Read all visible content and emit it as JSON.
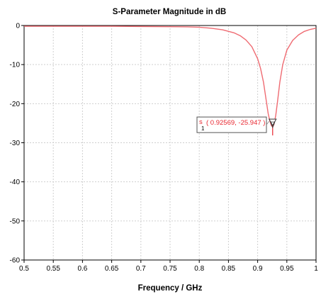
{
  "chart_data": {
    "type": "line",
    "title": "S-Parameter Magnitude in dB",
    "xlabel": "Frequency / GHz",
    "ylabel": "",
    "xlim": [
      0.5,
      1.0
    ],
    "ylim": [
      -60,
      0
    ],
    "x_ticks": [
      "0.5",
      "0.55",
      "0.6",
      "0.65",
      "0.7",
      "0.75",
      "0.8",
      "0.85",
      "0.9",
      "0.95",
      "1"
    ],
    "y_ticks": [
      "0",
      "-10",
      "-20",
      "-30",
      "-40",
      "-50",
      "-60"
    ],
    "grid": true,
    "colors": {
      "series": "#ef6b72",
      "marker": "#e8262f",
      "grid": "#cfcfcf",
      "axis": "#000000"
    },
    "series": [
      {
        "x": [
          0.5,
          0.55,
          0.6,
          0.65,
          0.7,
          0.75,
          0.78,
          0.8,
          0.82,
          0.84,
          0.86,
          0.87,
          0.88,
          0.89,
          0.9,
          0.905,
          0.91,
          0.915,
          0.918,
          0.921,
          0.9235,
          0.92569,
          0.928,
          0.931,
          0.934,
          0.938,
          0.943,
          0.95,
          0.96,
          0.97,
          0.98,
          0.99,
          1.0
        ],
        "y": [
          -0.2,
          -0.2,
          -0.2,
          -0.2,
          -0.25,
          -0.3,
          -0.35,
          -0.45,
          -0.7,
          -1.1,
          -1.9,
          -2.6,
          -3.7,
          -5.4,
          -8.5,
          -11.0,
          -14.5,
          -19.5,
          -22.5,
          -24.5,
          -25.6,
          -25.947,
          -25.3,
          -23.0,
          -19.5,
          -14.5,
          -10.0,
          -6.3,
          -3.8,
          -2.4,
          -1.5,
          -1.0,
          -0.7
        ]
      }
    ],
    "marker": {
      "index": "1",
      "prefix": "s",
      "label": "( 0.92569, -25.947 )",
      "x": 0.92569,
      "y": -25.947
    }
  }
}
